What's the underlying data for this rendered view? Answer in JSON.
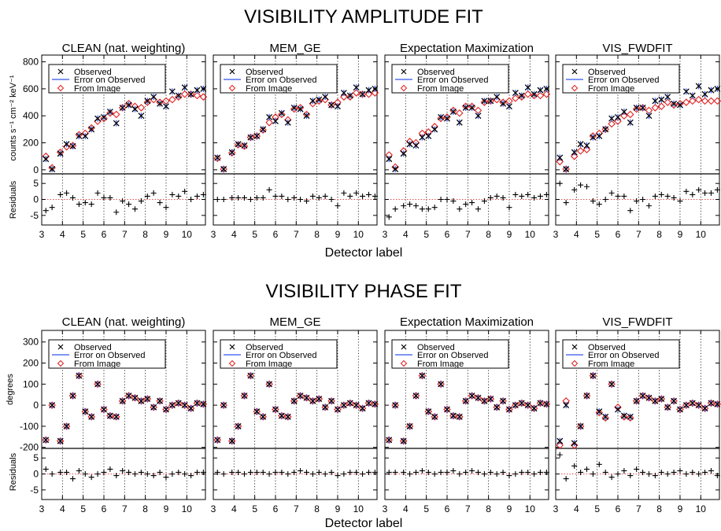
{
  "figure": {
    "amp_title": "VISIBILITY AMPLITUDE FIT",
    "phase_title": "VISIBILITY PHASE FIT",
    "xlabel": "Detector label",
    "residuals_label": "Residuals",
    "amp_ylabel": "counts s⁻¹ cm⁻² keV⁻¹",
    "phase_ylabel": "degrees",
    "colors": {
      "observed": "#000000",
      "error": "#3355ee",
      "image": "#e02020",
      "zero_line": "#e05050"
    }
  },
  "chart_data": [
    {
      "type": "scatter",
      "section": "amplitude",
      "x_ticks": [
        3,
        4,
        5,
        6,
        7,
        8,
        9,
        10
      ],
      "xlim": [
        3,
        10.9
      ],
      "ylim": [
        -30,
        850
      ],
      "y_ticks": [
        0,
        200,
        400,
        600,
        800
      ],
      "residual_ylim": [
        -8,
        8
      ],
      "residual_ticks": [
        -5,
        0,
        5
      ],
      "legend": [
        "Observed",
        "Error on Observed",
        "From Image"
      ],
      "legend_position": "top-left",
      "grid": "vertical dotted lines at detector boundaries",
      "x": [
        3.2,
        3.5,
        3.9,
        4.2,
        4.5,
        4.8,
        5.1,
        5.4,
        5.7,
        6.0,
        6.3,
        6.6,
        6.9,
        7.2,
        7.5,
        7.8,
        8.1,
        8.4,
        8.7,
        9.0,
        9.3,
        9.6,
        9.9,
        10.2,
        10.5,
        10.8
      ],
      "panels": [
        {
          "title": "CLEAN (nat. weighting)",
          "observed": [
            80,
            5,
            120,
            190,
            175,
            250,
            250,
            300,
            380,
            390,
            430,
            345,
            460,
            480,
            450,
            400,
            510,
            540,
            490,
            470,
            580,
            550,
            610,
            560,
            590,
            600
          ],
          "image": [
            100,
            15,
            130,
            170,
            180,
            260,
            270,
            310,
            360,
            380,
            420,
            410,
            460,
            490,
            470,
            460,
            500,
            520,
            500,
            510,
            520,
            540,
            560,
            560,
            550,
            540
          ],
          "residuals": [
            -3.5,
            -2.5,
            1.5,
            2,
            0.5,
            -1.5,
            -1,
            -1.5,
            2,
            0.5,
            0.5,
            -4,
            -0.5,
            -1.5,
            -3,
            -0.5,
            1,
            2,
            -1,
            -2.5,
            1.5,
            1,
            2.5,
            0,
            1,
            1.5
          ]
        },
        {
          "title": "MEM_GE",
          "observed": [
            90,
            5,
            130,
            190,
            180,
            240,
            250,
            300,
            390,
            360,
            420,
            350,
            460,
            450,
            400,
            510,
            520,
            540,
            480,
            470,
            570,
            550,
            610,
            560,
            590,
            600
          ],
          "image": [
            85,
            5,
            125,
            185,
            175,
            240,
            250,
            295,
            350,
            390,
            410,
            370,
            450,
            460,
            410,
            490,
            510,
            520,
            480,
            500,
            540,
            540,
            570,
            560,
            560,
            570
          ],
          "residuals": [
            0,
            0,
            0.5,
            0.5,
            0.5,
            0,
            0.5,
            0.5,
            3,
            1,
            1,
            0,
            0.5,
            0,
            -0.5,
            1,
            0.5,
            1,
            0,
            -2,
            2,
            1,
            2,
            1,
            1.5,
            1
          ]
        },
        {
          "title": "Expectation Maximization",
          "observed": [
            80,
            5,
            120,
            190,
            180,
            240,
            250,
            300,
            390,
            380,
            430,
            350,
            460,
            460,
            400,
            510,
            510,
            540,
            490,
            470,
            570,
            550,
            610,
            560,
            590,
            600
          ],
          "image": [
            110,
            20,
            140,
            210,
            200,
            270,
            280,
            320,
            380,
            390,
            440,
            420,
            470,
            470,
            440,
            500,
            510,
            520,
            500,
            510,
            530,
            540,
            560,
            550,
            550,
            560
          ],
          "residuals": [
            -5.5,
            -3,
            -2,
            -1.5,
            -2,
            -3,
            -3,
            -2.5,
            0,
            0,
            -0.5,
            -3,
            -1.5,
            -1,
            -3,
            -0.5,
            0.5,
            1,
            0.5,
            -2.5,
            1.5,
            1,
            1.5,
            0.5,
            1,
            1.5
          ]
        },
        {
          "title": "VIS_FWDFIT",
          "observed": [
            90,
            5,
            130,
            190,
            180,
            240,
            250,
            300,
            380,
            390,
            430,
            350,
            460,
            460,
            400,
            510,
            520,
            540,
            490,
            480,
            580,
            550,
            620,
            560,
            590,
            600
          ],
          "image": [
            60,
            5,
            100,
            140,
            150,
            250,
            270,
            300,
            340,
            360,
            400,
            410,
            450,
            460,
            440,
            460,
            470,
            500,
            480,
            490,
            500,
            510,
            520,
            510,
            510,
            510
          ],
          "residuals": [
            5,
            -1,
            3,
            4.5,
            4,
            -0.5,
            -1.5,
            0,
            2,
            1,
            1,
            -3.5,
            -0.5,
            0,
            -2,
            1,
            1.5,
            1,
            0.5,
            -0.5,
            2.5,
            1.5,
            3,
            2,
            2,
            3
          ]
        }
      ]
    },
    {
      "type": "scatter",
      "section": "phase",
      "x_ticks": [
        3,
        4,
        5,
        6,
        7,
        8,
        9,
        10
      ],
      "xlim": [
        3,
        10.9
      ],
      "ylim": [
        -205,
        355
      ],
      "y_ticks": [
        -200,
        -100,
        0,
        100,
        200,
        300
      ],
      "residual_ylim": [
        -8,
        8
      ],
      "residual_ticks": [
        -5,
        0,
        5
      ],
      "legend": [
        "Observed",
        "Error on Observed",
        "From Image"
      ],
      "legend_position": "top-left",
      "grid": "vertical dotted lines at detector boundaries",
      "x": [
        3.2,
        3.5,
        3.9,
        4.2,
        4.5,
        4.8,
        5.1,
        5.4,
        5.7,
        6.0,
        6.3,
        6.6,
        6.9,
        7.2,
        7.5,
        7.8,
        8.1,
        8.4,
        8.7,
        9.0,
        9.3,
        9.6,
        9.9,
        10.2,
        10.5,
        10.8
      ],
      "panels": [
        {
          "title": "CLEAN (nat. weighting)",
          "observed": [
            -165,
            0,
            -170,
            -100,
            45,
            140,
            -30,
            -55,
            100,
            -20,
            -50,
            -55,
            20,
            45,
            35,
            20,
            30,
            -10,
            20,
            -20,
            0,
            10,
            0,
            -15,
            10,
            5
          ],
          "image": [
            -165,
            0,
            -170,
            -100,
            45,
            140,
            -30,
            -55,
            100,
            -20,
            -50,
            -55,
            20,
            45,
            35,
            20,
            30,
            -10,
            20,
            -20,
            0,
            10,
            0,
            -15,
            10,
            5
          ],
          "residuals": [
            1.5,
            0,
            0.5,
            0.5,
            -1.5,
            1,
            0,
            -1,
            0,
            0.5,
            1.5,
            -0.5,
            1,
            0.5,
            0,
            0.5,
            0,
            -0.5,
            0.5,
            -1,
            0,
            0.5,
            0,
            -0.5,
            0.5,
            0.5
          ]
        },
        {
          "title": "MEM_GE",
          "observed": [
            -165,
            0,
            -170,
            -100,
            45,
            140,
            -30,
            -55,
            100,
            -20,
            -50,
            -55,
            20,
            45,
            35,
            20,
            30,
            -10,
            20,
            -20,
            0,
            10,
            0,
            -15,
            10,
            5
          ],
          "image": [
            -165,
            0,
            -170,
            -100,
            45,
            140,
            -30,
            -55,
            100,
            -20,
            -50,
            -55,
            20,
            45,
            35,
            20,
            30,
            -10,
            20,
            -20,
            0,
            10,
            0,
            -15,
            10,
            5
          ],
          "residuals": [
            0.5,
            0,
            0.5,
            0.5,
            0,
            0.5,
            0.5,
            0.5,
            0,
            0.5,
            0.5,
            0,
            0.5,
            1,
            0.5,
            0,
            0.5,
            0,
            0.5,
            -0.5,
            0,
            0.5,
            0.5,
            0,
            0.5,
            0.5
          ]
        },
        {
          "title": "Expectation Maximization",
          "observed": [
            -165,
            0,
            -170,
            -100,
            45,
            140,
            -30,
            -55,
            100,
            -20,
            -50,
            -55,
            20,
            45,
            35,
            20,
            30,
            -10,
            20,
            -20,
            0,
            10,
            0,
            -15,
            10,
            5
          ],
          "image": [
            -165,
            0,
            -170,
            -100,
            45,
            140,
            -30,
            -55,
            100,
            -20,
            -50,
            -55,
            20,
            45,
            35,
            20,
            30,
            -10,
            20,
            -20,
            0,
            10,
            0,
            -15,
            10,
            5
          ],
          "residuals": [
            0.5,
            0.5,
            0.5,
            0,
            0.5,
            1,
            0.5,
            0,
            0.5,
            0.5,
            1,
            0,
            0.5,
            1,
            0.5,
            0,
            0.5,
            0,
            0.5,
            -0.5,
            0,
            0.5,
            0.5,
            0,
            0.5,
            0.5
          ]
        },
        {
          "title": "VIS_FWDFIT",
          "observed": [
            -170,
            0,
            -180,
            -100,
            45,
            140,
            -30,
            -55,
            100,
            -20,
            -50,
            -55,
            20,
            45,
            35,
            20,
            30,
            -10,
            20,
            -20,
            0,
            10,
            0,
            -15,
            10,
            5
          ],
          "image": [
            -190,
            20,
            -190,
            -100,
            45,
            140,
            -35,
            -60,
            100,
            -10,
            -55,
            -60,
            20,
            45,
            35,
            20,
            30,
            -10,
            20,
            -20,
            0,
            10,
            0,
            -15,
            10,
            5
          ],
          "residuals": [
            6,
            -1.5,
            2.5,
            0.5,
            1.5,
            0,
            3,
            0.5,
            -1,
            0,
            1,
            -0.5,
            1.5,
            0.5,
            0,
            -0.5,
            0.5,
            0,
            0.5,
            1,
            0,
            0.5,
            0,
            0.5,
            1,
            -0.5
          ]
        }
      ]
    }
  ]
}
